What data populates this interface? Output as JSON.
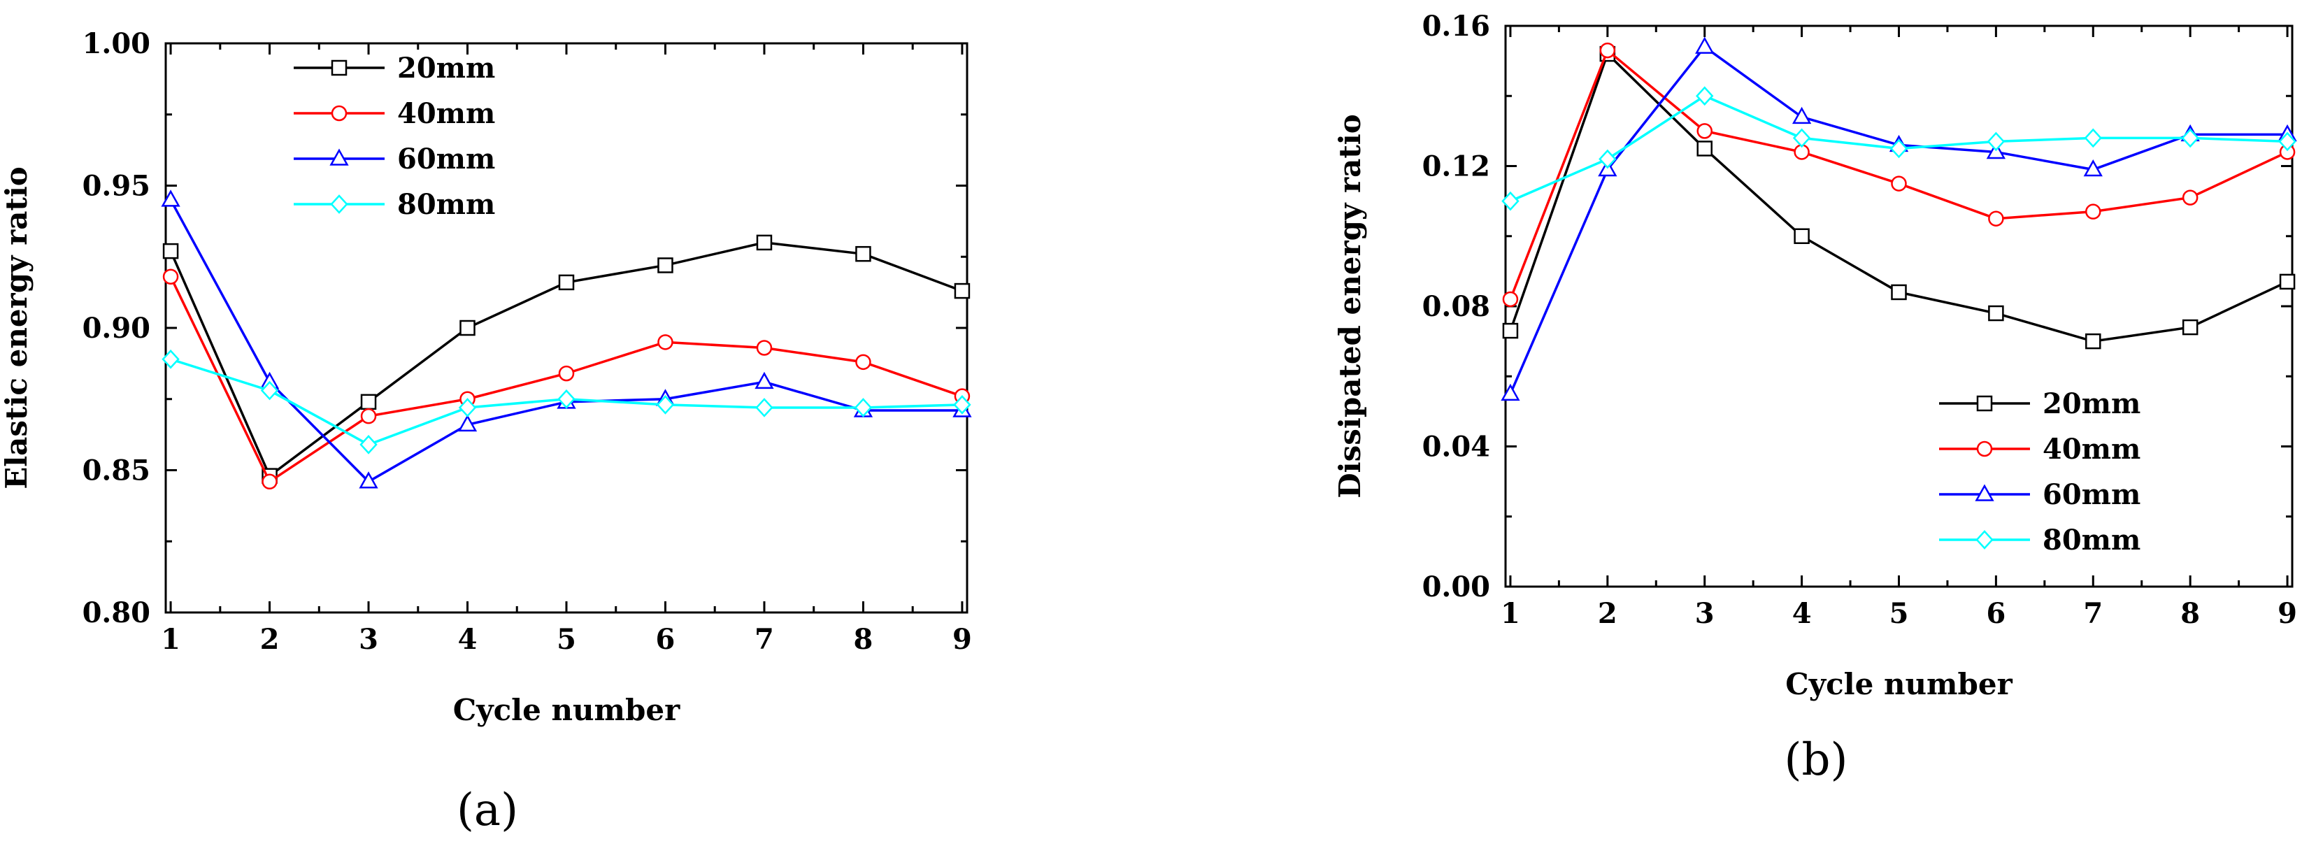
{
  "chart_data": [
    {
      "type": "line",
      "panel_label": "(a)",
      "xlabel": "Cycle number",
      "ylabel": "Elastic energy ratio",
      "x": [
        1,
        2,
        3,
        4,
        5,
        6,
        7,
        8,
        9
      ],
      "xlim": [
        0.95,
        9.05
      ],
      "ylim": [
        0.8,
        1.0
      ],
      "yticks": [
        "0.80",
        "0.85",
        "0.90",
        "0.95",
        "1.00"
      ],
      "ytick_values": [
        0.8,
        0.85,
        0.9,
        0.95,
        1.0
      ],
      "xticks": [
        "1",
        "2",
        "3",
        "4",
        "5",
        "6",
        "7",
        "8",
        "9"
      ],
      "legend_position": "top-left",
      "series": [
        {
          "name": "20mm",
          "color": "#000000",
          "marker": "square",
          "values": [
            0.927,
            0.848,
            0.874,
            0.9,
            0.916,
            0.922,
            0.93,
            0.926,
            0.913
          ]
        },
        {
          "name": "40mm",
          "color": "#ff0000",
          "marker": "circle",
          "values": [
            0.918,
            0.846,
            0.869,
            0.875,
            0.884,
            0.895,
            0.893,
            0.888,
            0.876
          ]
        },
        {
          "name": "60mm",
          "color": "#0000ff",
          "marker": "triangle",
          "values": [
            0.945,
            0.881,
            0.846,
            0.866,
            0.874,
            0.875,
            0.881,
            0.871,
            0.871
          ]
        },
        {
          "name": "80mm",
          "color": "#00ffff",
          "marker": "diamond",
          "values": [
            0.889,
            0.878,
            0.859,
            0.872,
            0.875,
            0.873,
            0.872,
            0.872,
            0.873
          ]
        }
      ]
    },
    {
      "type": "line",
      "panel_label": "(b)",
      "xlabel": "Cycle number",
      "ylabel": "Dissipated energy ratio",
      "x": [
        1,
        2,
        3,
        4,
        5,
        6,
        7,
        8,
        9
      ],
      "xlim": [
        0.95,
        9.05
      ],
      "ylim": [
        0.0,
        0.16
      ],
      "yticks": [
        "0.00",
        "0.04",
        "0.08",
        "0.12",
        "0.16"
      ],
      "ytick_values": [
        0.0,
        0.04,
        0.08,
        0.12,
        0.16
      ],
      "xticks": [
        "1",
        "2",
        "3",
        "4",
        "5",
        "6",
        "7",
        "8",
        "9"
      ],
      "legend_position": "bottom-right",
      "series": [
        {
          "name": "20mm",
          "color": "#000000",
          "marker": "square",
          "values": [
            0.073,
            0.152,
            0.125,
            0.1,
            0.084,
            0.078,
            0.07,
            0.074,
            0.087
          ]
        },
        {
          "name": "40mm",
          "color": "#ff0000",
          "marker": "circle",
          "values": [
            0.082,
            0.153,
            0.13,
            0.124,
            0.115,
            0.105,
            0.107,
            0.111,
            0.124
          ]
        },
        {
          "name": "60mm",
          "color": "#0000ff",
          "marker": "triangle",
          "values": [
            0.055,
            0.119,
            0.154,
            0.134,
            0.126,
            0.124,
            0.119,
            0.129,
            0.129
          ]
        },
        {
          "name": "80mm",
          "color": "#00ffff",
          "marker": "diamond",
          "values": [
            0.11,
            0.122,
            0.14,
            0.128,
            0.125,
            0.127,
            0.128,
            0.128,
            0.127
          ]
        }
      ]
    }
  ]
}
